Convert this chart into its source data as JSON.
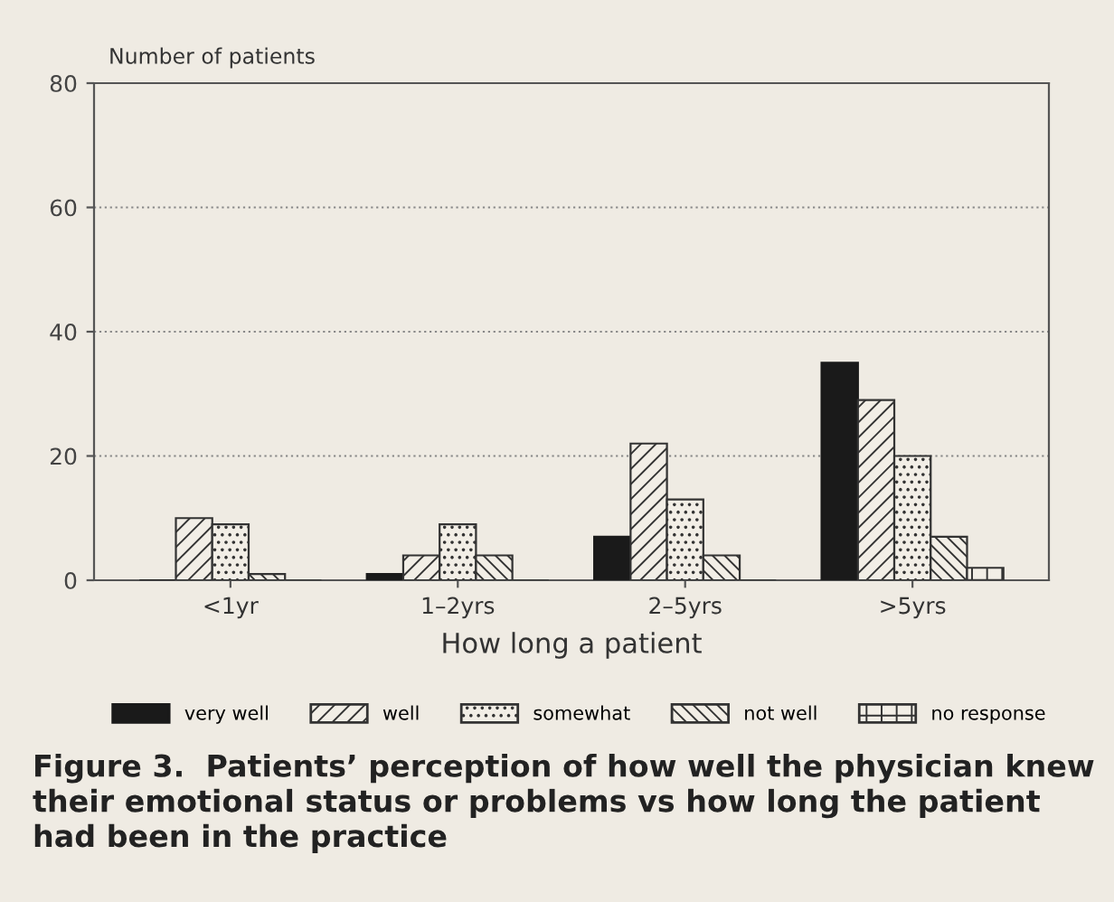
{
  "chart_data": {
    "type": "bar",
    "title": "Figure 3.  Patients’ perception of how well the physician knew their emotional status or problems vs how long the patient had been in the practice",
    "ylabel": "Number of patients",
    "xlabel": "How long a patient",
    "categories": [
      "<1yr",
      "1–2yrs",
      "2–5yrs",
      ">5yrs"
    ],
    "series": [
      {
        "name": "very well",
        "color": "#1a1a1a",
        "values": [
          0,
          1,
          7,
          35
        ]
      },
      {
        "name": "well",
        "color": "#333333",
        "values": [
          10,
          4,
          22,
          29
        ]
      },
      {
        "name": "somewhat",
        "color": "#333333",
        "values": [
          9,
          9,
          13,
          20
        ]
      },
      {
        "name": "not well",
        "color": "#333333",
        "values": [
          1,
          4,
          4,
          7
        ]
      },
      {
        "name": "no response",
        "color": "#333333",
        "values": [
          0,
          0,
          0,
          2
        ]
      }
    ],
    "ylim": [
      0,
      80
    ],
    "yticks": [
      0,
      20,
      40,
      60,
      80
    ],
    "grid": "y",
    "legend": "bottom"
  }
}
